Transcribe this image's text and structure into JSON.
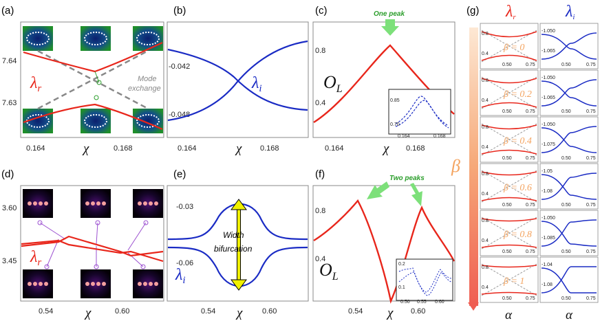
{
  "figure": {
    "panel_labels": [
      "(a)",
      "(b)",
      "(c)",
      "(d)",
      "(e)",
      "(f)",
      "(g)"
    ],
    "x_symbol": "χ",
    "alpha_symbol": "α",
    "lambda_r": "λ",
    "lambda_r_sub": "r",
    "lambda_i": "λ",
    "lambda_i_sub": "i",
    "O_main": "O",
    "O_sub": "L",
    "beta_symbol": "β",
    "colors": {
      "red": "#e8261b",
      "blue": "#1a2bc4",
      "green": "#2a9d2a",
      "gray": "#888888",
      "orange": "#f4a460"
    }
  },
  "panel_a": {
    "yticks": [
      "7.64",
      "7.63"
    ],
    "xticks": [
      "0.164",
      "0.168"
    ],
    "annotation_line1": "Mode",
    "annotation_line2": "exchange"
  },
  "panel_b": {
    "yticks": [
      "-0.042",
      "-0.048"
    ],
    "xticks": [
      "0.164",
      "0.168"
    ]
  },
  "panel_c": {
    "yticks": [
      "0.8",
      "0.4"
    ],
    "xticks": [
      "0.164",
      "0.168"
    ],
    "annotation": "One peak",
    "inset_yticks": [
      "0.85",
      "0.70"
    ],
    "inset_xticks": [
      "0.164",
      "0.168"
    ]
  },
  "panel_d": {
    "yticks": [
      "3.60",
      "3.45"
    ],
    "xticks": [
      "0.54",
      "0.60"
    ]
  },
  "panel_e": {
    "yticks": [
      "-0.03",
      "-0.06"
    ],
    "xticks": [
      "0.54",
      "0.60"
    ],
    "annotation_line1": "Width",
    "annotation_line2": "bifurcation"
  },
  "panel_f": {
    "yticks": [
      "0.8",
      "0.4"
    ],
    "xticks": [
      "0.54",
      "0.60"
    ],
    "annotation": "Two peaks",
    "inset_yticks": [
      "0.2",
      "0.1"
    ],
    "inset_xticks": [
      "0.50",
      "0.55",
      "0.60"
    ]
  },
  "panel_g": {
    "beta_labels": [
      "β = 0",
      "β = 0.2",
      "β = 0.4",
      "β = 0.6",
      "β = 0.8",
      "β = 1"
    ],
    "left_yticks_top": [
      "0.8",
      "0.8",
      "0.8",
      "0.8",
      "0.8",
      "0.8"
    ],
    "left_yticks_bot": [
      "0.4",
      "0.4",
      "0.4",
      "0.4",
      "0.4",
      "0.4"
    ],
    "right_yticks_top": [
      "-1.050",
      "-1.050",
      "-1.050",
      "-1.05",
      "-1.050",
      "-1.04"
    ],
    "right_yticks_bot": [
      "-1.065",
      "-1.065",
      "-1.075",
      "-1.08",
      "-1.085",
      "-1.08"
    ],
    "xticks": [
      "0.50",
      "0.75"
    ]
  },
  "chart_data": [
    {
      "type": "line",
      "panel": "a",
      "series": [
        {
          "values": [
            [
              0.1625,
              7.639
            ],
            [
              0.1655,
              7.6355
            ],
            [
              0.1665,
              7.6365
            ],
            [
              0.169,
              7.64
            ]
          ]
        },
        {
          "values": [
            [
              0.1625,
              7.629
            ],
            [
              0.1655,
              7.6315
            ],
            [
              0.1665,
              7.631
            ],
            [
              0.169,
              7.627
            ]
          ]
        }
      ]
    },
    {
      "type": "line",
      "panel": "b",
      "series": [
        {
          "values": [
            [
              0.1625,
              -0.0425
            ],
            [
              0.1665,
              -0.0455
            ],
            [
              0.169,
              -0.0485
            ]
          ]
        },
        {
          "values": [
            [
              0.1625,
              -0.048
            ],
            [
              0.1665,
              -0.0455
            ],
            [
              0.169,
              -0.0415
            ]
          ]
        }
      ]
    },
    {
      "type": "line",
      "panel": "c",
      "series": [
        {
          "values": [
            [
              0.1625,
              0.36
            ],
            [
              0.166,
              0.85
            ],
            [
              0.169,
              0.42
            ]
          ]
        }
      ]
    },
    {
      "type": "line",
      "panel": "d",
      "series": [
        {
          "values": [
            [
              0.52,
              3.57
            ],
            [
              0.54,
              3.56
            ],
            [
              0.6,
              3.545
            ],
            [
              0.63,
              3.525
            ]
          ]
        },
        {
          "values": [
            [
              0.52,
              3.54
            ],
            [
              0.54,
              3.53
            ],
            [
              0.6,
              3.5
            ],
            [
              0.63,
              3.485
            ]
          ]
        }
      ]
    },
    {
      "type": "line",
      "panel": "e",
      "series": [
        {
          "values": [
            [
              0.52,
              -0.044
            ],
            [
              0.57,
              -0.031
            ],
            [
              0.63,
              -0.044
            ]
          ]
        },
        {
          "values": [
            [
              0.52,
              -0.046
            ],
            [
              0.57,
              -0.064
            ],
            [
              0.63,
              -0.046
            ]
          ]
        }
      ]
    },
    {
      "type": "line",
      "panel": "f",
      "series": [
        {
          "values": [
            [
              0.52,
              0.55
            ],
            [
              0.54,
              0.85
            ],
            [
              0.57,
              0.18
            ],
            [
              0.6,
              0.83
            ],
            [
              0.63,
              0.55
            ]
          ]
        }
      ]
    }
  ]
}
